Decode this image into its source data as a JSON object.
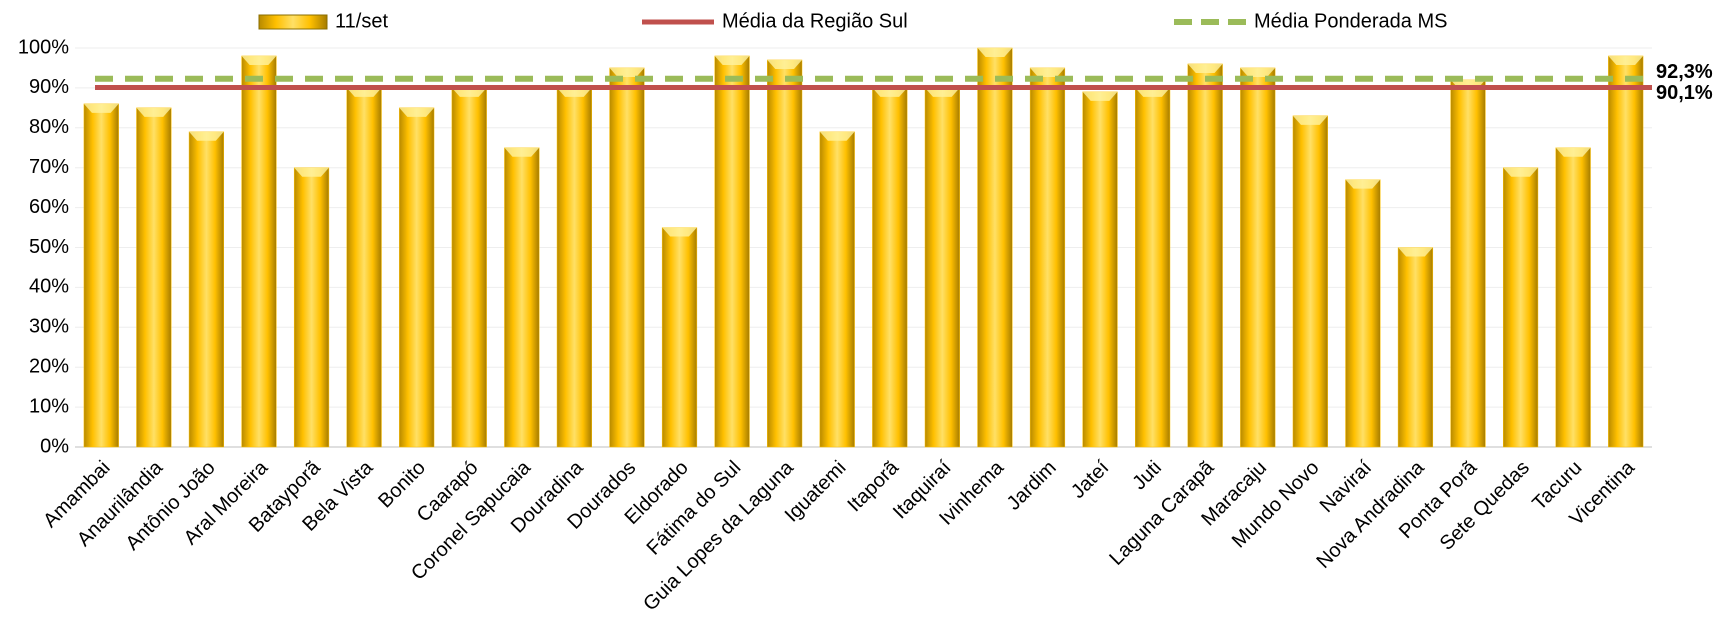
{
  "chart_data": {
    "type": "bar",
    "categories": [
      "Amambai",
      "Anaurilândia",
      "Antônio João",
      "Aral Moreira",
      "Batayporã",
      "Bela Vista",
      "Bonito",
      "Caarapó",
      "Coronel Sapucaia",
      "Douradina",
      "Dourados",
      "Eldorado",
      "Fátima do Sul",
      "Guia Lopes da Laguna",
      "Iguatemi",
      "Itaporã",
      "Itaquiraí",
      "Ivinhema",
      "Jardim",
      "Jateí",
      "Juti",
      "Laguna Carapã",
      "Maracaju",
      "Mundo Novo",
      "Naviraí",
      "Nova Andradina",
      "Ponta Porã",
      "Sete Quedas",
      "Tacuru",
      "Vicentina"
    ],
    "series": [
      {
        "name": "11/set",
        "color": "#ffc000",
        "values": [
          86,
          85,
          79,
          98,
          70,
          90,
          85,
          90,
          75,
          90,
          95,
          55,
          98,
          97,
          79,
          90,
          90,
          100,
          95,
          89,
          90,
          96,
          95,
          83,
          67,
          50,
          92,
          70,
          75,
          98
        ]
      }
    ],
    "reference_lines": [
      {
        "name": "Média da Região Sul",
        "color": "#c0504d",
        "value": 90.1,
        "value_label": "90,1%",
        "style": "solid"
      },
      {
        "name": "Média Ponderada MS",
        "color": "#9bbb59",
        "value": 92.3,
        "value_label": "92,3%",
        "style": "dashed"
      }
    ],
    "ylim": [
      0,
      100
    ],
    "yticks": [
      {
        "value": 0,
        "label": "0%"
      },
      {
        "value": 10,
        "label": "10%"
      },
      {
        "value": 20,
        "label": "20%"
      },
      {
        "value": 30,
        "label": "30%"
      },
      {
        "value": 40,
        "label": "40%"
      },
      {
        "value": 50,
        "label": "50%"
      },
      {
        "value": 60,
        "label": "60%"
      },
      {
        "value": 70,
        "label": "70%"
      },
      {
        "value": 80,
        "label": "80%"
      },
      {
        "value": 90,
        "label": "90%"
      },
      {
        "value": 100,
        "label": "100%"
      }
    ],
    "grid": true,
    "legend": "top"
  }
}
